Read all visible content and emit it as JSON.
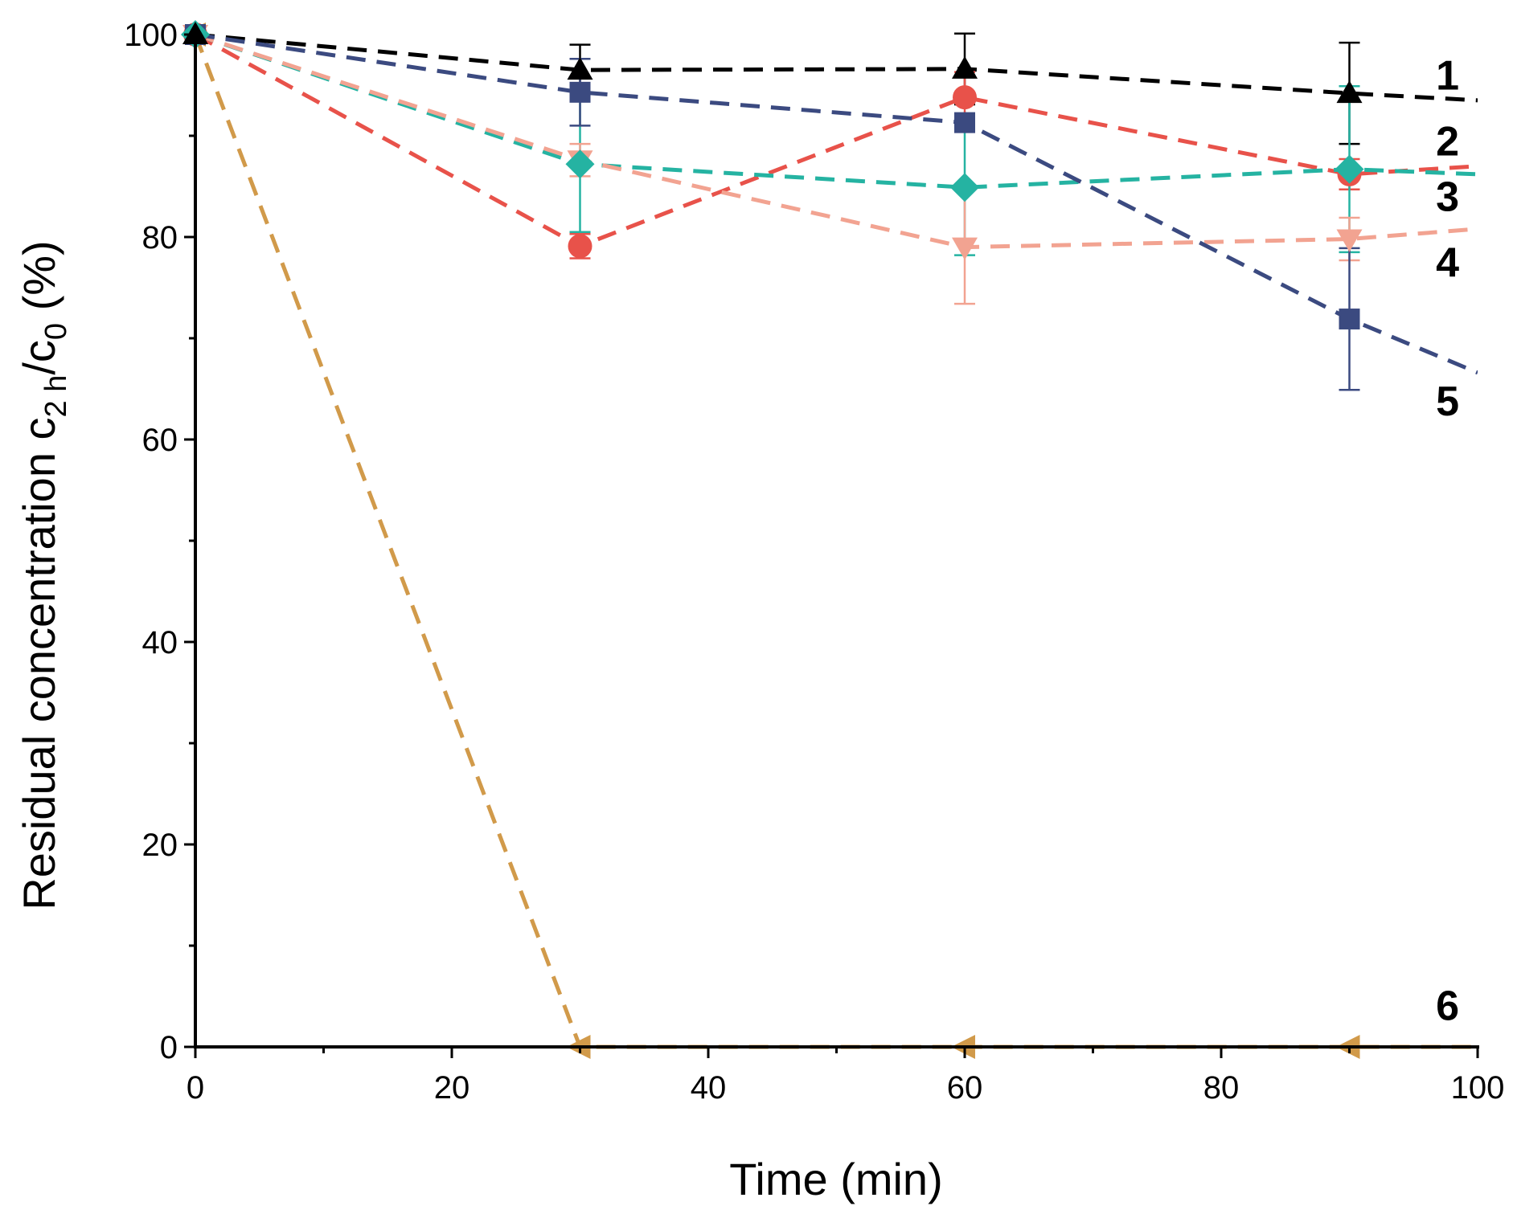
{
  "chart_data": {
    "type": "line",
    "title": "",
    "xlabel": "Time (min)",
    "ylabel": {
      "prefix": "Residual concentration c",
      "sub1": "2 h",
      "mid": "/c",
      "sub2": "0",
      "suffix": " (%)"
    },
    "xlim": [
      0,
      100
    ],
    "ylim": [
      0,
      100
    ],
    "xticks": [
      0,
      20,
      40,
      60,
      80,
      100
    ],
    "xtick_labels": [
      "0",
      "20",
      "40",
      "60",
      "80",
      "100"
    ],
    "yticks": [
      0,
      20,
      40,
      60,
      80,
      100
    ],
    "ytick_labels": [
      "0",
      "20",
      "40",
      "60",
      "80",
      "100"
    ],
    "grid": false,
    "line_x": [
      0,
      30,
      60,
      90,
      100
    ],
    "series": [
      {
        "name": "1",
        "color": "#000000",
        "marker": "triangle-up",
        "line_y": [
          100,
          96.5,
          96.6,
          94.2,
          93.5
        ],
        "points": [
          [
            0,
            100
          ],
          [
            30,
            96.5
          ],
          [
            60,
            96.6
          ],
          [
            90,
            94.2
          ]
        ],
        "errors": [
          0,
          2.5,
          3.5,
          5
        ]
      },
      {
        "name": "2",
        "color": "#e8524a",
        "marker": "circle",
        "line_y": [
          100,
          79.1,
          93.8,
          86.2,
          87.0
        ],
        "points": [
          [
            0,
            100
          ],
          [
            30,
            79.1
          ],
          [
            60,
            93.8
          ],
          [
            90,
            86.2
          ]
        ],
        "errors": [
          0,
          1.2,
          2.5,
          1.5
        ]
      },
      {
        "name": "3",
        "color": "#25b3a2",
        "marker": "diamond",
        "line_y": [
          100,
          87.2,
          84.9,
          86.7,
          86.2
        ],
        "points": [
          [
            0,
            100
          ],
          [
            30,
            87.2
          ],
          [
            60,
            84.9
          ],
          [
            90,
            86.7
          ]
        ],
        "errors": [
          0,
          6.7,
          6.7,
          8.2
        ]
      },
      {
        "name": "4",
        "color": "#f2a391",
        "marker": "triangle-down",
        "line_y": [
          100,
          87.6,
          79.0,
          79.8,
          80.8
        ],
        "points": [
          [
            0,
            100
          ],
          [
            30,
            87.6
          ],
          [
            60,
            79.0
          ],
          [
            90,
            79.8
          ]
        ],
        "errors": [
          0,
          1.6,
          5.6,
          2.1
        ]
      },
      {
        "name": "5",
        "color": "#3b4a80",
        "marker": "square",
        "line_y": [
          100,
          94.3,
          91.3,
          71.9,
          66.6
        ],
        "points": [
          [
            0,
            100
          ],
          [
            30,
            94.3
          ],
          [
            60,
            91.3
          ],
          [
            90,
            71.9
          ]
        ],
        "errors": [
          0,
          3.3,
          0.6,
          7.0
        ]
      },
      {
        "name": "6",
        "color": "#d19a4a",
        "marker": "triangle-left",
        "line_y": [
          100,
          0,
          0,
          0,
          0
        ],
        "points": [
          [
            0,
            100
          ],
          [
            30,
            0
          ],
          [
            60,
            0
          ],
          [
            90,
            0
          ]
        ],
        "errors": [
          0,
          0,
          0,
          0
        ]
      }
    ],
    "series_labels": [
      {
        "text": "1",
        "y": 96
      },
      {
        "text": "2",
        "y": 89.5
      },
      {
        "text": "3",
        "y": 84
      },
      {
        "text": "4",
        "y": 77.5
      },
      {
        "text": "5",
        "y": 63.8
      },
      {
        "text": "6",
        "y": 4.1
      }
    ]
  }
}
